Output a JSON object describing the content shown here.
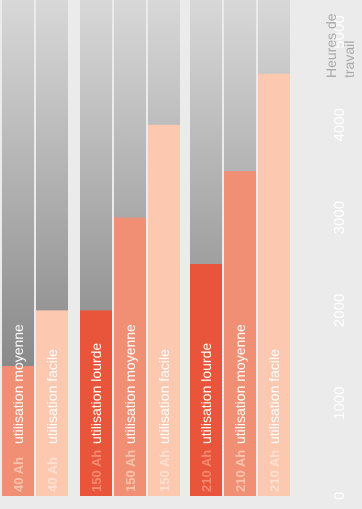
{
  "chart_data": {
    "type": "bar",
    "orientation": "horizontal",
    "x_axis_label_line1": "Heures de",
    "x_axis_label_line2": "travail",
    "xlim": [
      0,
      5600
    ],
    "x_ticks": [
      "0",
      "1000",
      "2000",
      "3000",
      "4000",
      "5000"
    ],
    "tick_values": [
      0,
      1000,
      2000,
      3000,
      4000,
      5000
    ],
    "bars": [
      {
        "battery": "40 Ah",
        "usage": "utilisation moyenne",
        "value": 1400,
        "color": "#f08f74",
        "label_color": "#f8c2ad"
      },
      {
        "battery": "40 Ah",
        "usage": "utilisation facile",
        "value": 2000,
        "color": "#fdc8b0",
        "label_color": "#fde0d2"
      },
      {
        "battery": "150 Ah",
        "usage": "utilisation lourde",
        "value": 2000,
        "color": "#e8553b",
        "label_color": "#f08a70"
      },
      {
        "battery": "150 Ah",
        "usage": "utilisation moyenne",
        "value": 3000,
        "color": "#f08f74",
        "label_color": "#f8c2ad"
      },
      {
        "battery": "150 Ah",
        "usage": "utilisation facile",
        "value": 4000,
        "color": "#fdc8b0",
        "label_color": "#fde0d2"
      },
      {
        "battery": "210 Ah",
        "usage": "utilisation lourde",
        "value": 2500,
        "color": "#e8553b",
        "label_color": "#f08a70"
      },
      {
        "battery": "210 Ah",
        "usage": "utilisation moyenne",
        "value": 3500,
        "color": "#f08f74",
        "label_color": "#f8c2ad"
      },
      {
        "battery": "210 Ah",
        "usage": "utilisation facile",
        "value": 4550,
        "color": "#fdc8b0",
        "label_color": "#fde0d2"
      }
    ],
    "colors": {
      "background": "#ebebeb",
      "track_light": "#d8d8d8",
      "track_dark": "#6e6e6e",
      "tick_text": "#ffffff",
      "axis_title": "#a9a9a9"
    }
  }
}
